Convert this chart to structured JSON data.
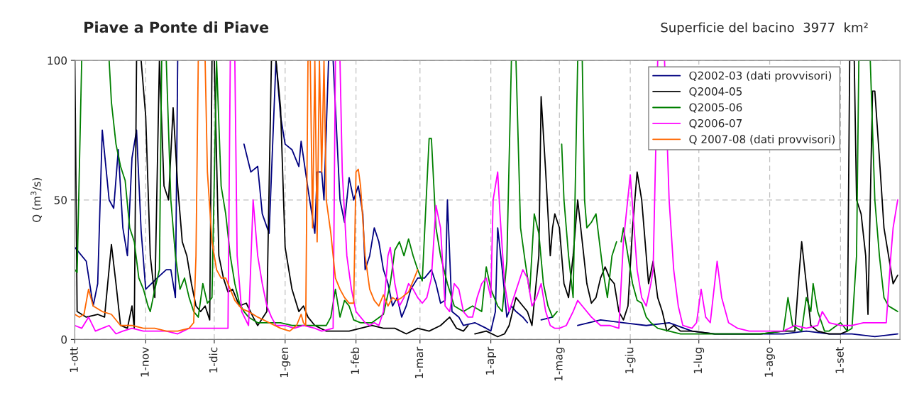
{
  "chart_data": {
    "type": "line",
    "title": "Piave a Ponte di Piave",
    "subtitle": "Superficie del bacino  3977  km²",
    "ylabel": "Q (m$^{3}$/s)",
    "xlim": [
      "2001-10-01",
      "2002-09-27"
    ],
    "xticks": [
      {
        "value": "2001-10-01",
        "label": "1-ott"
      },
      {
        "value": "2001-11-01",
        "label": "1-nov"
      },
      {
        "value": "2001-12-01",
        "label": "1-dic"
      },
      {
        "value": "2002-01-01",
        "label": "1-gen"
      },
      {
        "value": "2002-02-01",
        "label": "1-feb"
      },
      {
        "value": "2002-03-01",
        "label": "1-mar"
      },
      {
        "value": "2002-04-01",
        "label": "1-apr"
      },
      {
        "value": "2002-05-01",
        "label": "1-mag"
      },
      {
        "value": "2002-06-01",
        "label": "1-giu"
      },
      {
        "value": "2002-07-01",
        "label": "1-lug"
      },
      {
        "value": "2002-08-01",
        "label": "1-ago"
      },
      {
        "value": "2002-09-01",
        "label": "1-set"
      }
    ],
    "ylim": [
      0,
      100
    ],
    "yticks": [
      0,
      50,
      100
    ],
    "grid": true,
    "legend": "top right",
    "line_style": "solid",
    "marker": "none",
    "series": [
      {
        "name": "Q2002-03 (dati provvisori)",
        "color": "#000080",
        "x": [
          "2001-10-01",
          "2001-10-06",
          "2001-10-09",
          "2001-10-11",
          "2001-10-13",
          "2001-10-16",
          "2001-10-18",
          "2001-10-20",
          "2001-10-22",
          "2001-10-24",
          "2001-10-26",
          "2001-10-28",
          "2001-10-30",
          "2001-11-01",
          "2001-11-06",
          "2001-11-10",
          "2001-11-12",
          "2001-11-14",
          "2001-11-15",
          "2001-11-17",
          "2001-12-12",
          "2001-12-14",
          "2001-12-17",
          "2001-12-20",
          "2001-12-22",
          "2001-12-25",
          "2001-12-28",
          "2001-12-30",
          "2002-01-01",
          "2002-01-04",
          "2002-01-07",
          "2002-01-08",
          "2002-01-11",
          "2002-01-14",
          "2002-01-15",
          "2002-01-17",
          "2002-01-18",
          "2002-01-20",
          "2002-01-22",
          "2002-01-25",
          "2002-01-27",
          "2002-01-29",
          "2002-01-31",
          "2002-02-02",
          "2002-02-04",
          "2002-02-05",
          "2002-02-07",
          "2002-02-09",
          "2002-02-11",
          "2002-02-13",
          "2002-02-15",
          "2002-02-17",
          "2002-02-19",
          "2002-02-21",
          "2002-02-23",
          "2002-02-25",
          "2002-02-28",
          "2002-03-03",
          "2002-03-06",
          "2002-03-08",
          "2002-03-10",
          "2002-03-12",
          "2002-03-13",
          "2002-03-15",
          "2002-03-18",
          "2002-03-20",
          "2002-03-25",
          "2002-03-30",
          "2002-04-01",
          "2002-04-03",
          "2002-04-04",
          "2002-04-06",
          "2002-04-08",
          "2002-04-10",
          "2002-04-12",
          "2002-04-15",
          "2002-04-17",
          "2002-04-19",
          "2002-04-23",
          "2002-04-28",
          "2002-05-03",
          "2002-05-09",
          "2002-05-19",
          "2002-05-29",
          "2002-06-08",
          "2002-06-18",
          "2002-06-28",
          "2002-07-08",
          "2002-07-18",
          "2002-07-28",
          "2002-08-07",
          "2002-08-17",
          "2002-08-27",
          "2002-09-06",
          "2002-09-16",
          "2002-09-26"
        ],
        "values": [
          33,
          28,
          12,
          20,
          75,
          50,
          47,
          68,
          40,
          30,
          65,
          75,
          39,
          18,
          22,
          25,
          25,
          15,
          100,
          null,
          null,
          70,
          60,
          62,
          45,
          38,
          100,
          80,
          70,
          68,
          62,
          71,
          54,
          38,
          60,
          60,
          50,
          100,
          100,
          50,
          42,
          58,
          50,
          55,
          45,
          25,
          30,
          40,
          35,
          25,
          20,
          12,
          15,
          8,
          12,
          18,
          22,
          22,
          25,
          20,
          13,
          14,
          50,
          10,
          8,
          5,
          6,
          4,
          3,
          10,
          40,
          25,
          8,
          12,
          10,
          8,
          6,
          null,
          7,
          8,
          null,
          5,
          7,
          6,
          5,
          6,
          3,
          2,
          2,
          2,
          2,
          3,
          2,
          2,
          1,
          2
        ]
      },
      {
        "name": "Q2004-05",
        "color": "#000000",
        "x": [
          "2001-10-01",
          "2001-10-02",
          "2001-10-06",
          "2001-10-11",
          "2001-10-14",
          "2001-10-17",
          "2001-10-19",
          "2001-10-21",
          "2001-10-24",
          "2001-10-26",
          "2001-10-27",
          "2001-10-28",
          "2001-10-30",
          "2001-11-01",
          "2001-11-03",
          "2001-11-05",
          "2001-11-07",
          "2001-11-09",
          "2001-11-11",
          "2001-11-13",
          "2001-11-15",
          "2001-11-17",
          "2001-11-19",
          "2001-11-21",
          "2001-11-23",
          "2001-11-25",
          "2001-11-27",
          "2001-11-29",
          "2001-11-30",
          "2001-12-01",
          "2001-12-03",
          "2001-12-05",
          "2001-12-07",
          "2001-12-09",
          "2001-12-12",
          "2001-12-15",
          "2001-12-18",
          "2001-12-20",
          "2001-12-24",
          "2001-12-26",
          "2001-12-28",
          "2001-12-30",
          "2002-01-01",
          "2002-01-04",
          "2002-01-07",
          "2002-01-09",
          "2002-01-11",
          "2002-01-14",
          "2002-01-19",
          "2002-01-24",
          "2002-01-29",
          "2002-02-03",
          "2002-02-08",
          "2002-02-13",
          "2002-02-18",
          "2002-02-23",
          "2002-02-28",
          "2002-03-05",
          "2002-03-10",
          "2002-03-14",
          "2002-03-17",
          "2002-03-20",
          "2002-03-22",
          "2002-03-23",
          "2002-03-25",
          "2002-03-30",
          "2002-04-04",
          "2002-04-07",
          "2002-04-09",
          "2002-04-12",
          "2002-04-15",
          "2002-04-17",
          "2002-04-19",
          "2002-04-22",
          "2002-04-23",
          "2002-04-25",
          "2002-04-27",
          "2002-04-28",
          "2002-04-29",
          "2002-05-01",
          "2002-05-03",
          "2002-05-05",
          "2002-05-07",
          "2002-05-09",
          "2002-05-11",
          "2002-05-13",
          "2002-05-15",
          "2002-05-17",
          "2002-05-19",
          "2002-05-21",
          "2002-05-23",
          "2002-05-25",
          "2002-05-27",
          "2002-05-29",
          "2002-05-31",
          "2002-06-02",
          "2002-06-04",
          "2002-06-06",
          "2002-06-07",
          "2002-06-09",
          "2002-06-11",
          "2002-06-13",
          "2002-06-15",
          "2002-06-17",
          "2002-06-20",
          "2002-06-23",
          "2002-06-28",
          "2002-07-08",
          "2002-07-18",
          "2002-07-28",
          "2002-08-07",
          "2002-08-12",
          "2002-08-14",
          "2002-08-15",
          "2002-08-17",
          "2002-08-19",
          "2002-08-22",
          "2002-08-27",
          "2002-09-01",
          "2002-09-04",
          "2002-09-05",
          "2002-09-07",
          "2002-09-08",
          "2002-09-10",
          "2002-09-12",
          "2002-09-13",
          "2002-09-15",
          "2002-09-16",
          "2002-09-18",
          "2002-09-20",
          "2002-09-22",
          "2002-09-24",
          "2002-09-26"
        ],
        "values": [
          100,
          10,
          8,
          9,
          8,
          34,
          20,
          5,
          4,
          12,
          4,
          100,
          100,
          80,
          30,
          15,
          100,
          55,
          50,
          83,
          55,
          35,
          30,
          20,
          12,
          10,
          12,
          7,
          100,
          100,
          30,
          22,
          17,
          18,
          12,
          13,
          8,
          5,
          10,
          100,
          100,
          83,
          33,
          18,
          10,
          12,
          8,
          5,
          3,
          3,
          3,
          4,
          5,
          4,
          4,
          2,
          4,
          3,
          5,
          8,
          4,
          3,
          5,
          null,
          2,
          3,
          1,
          2,
          5,
          15,
          12,
          10,
          5,
          30,
          87,
          60,
          30,
          40,
          45,
          40,
          20,
          15,
          30,
          50,
          35,
          20,
          13,
          15,
          22,
          26,
          22,
          20,
          10,
          7,
          12,
          40,
          60,
          50,
          40,
          20,
          28,
          15,
          10,
          3,
          5,
          3,
          3,
          2,
          2,
          2,
          3,
          3,
          25,
          35,
          20,
          5,
          3,
          2,
          2,
          3,
          100,
          100,
          50,
          45,
          30,
          9,
          89,
          89,
          65,
          40,
          30,
          20,
          23
        ]
      },
      {
        "name": "Q2005-06",
        "color": "#008000",
        "x": [
          "2001-10-01",
          "2001-10-02",
          "2001-10-04",
          "2001-10-13",
          "2001-10-16",
          "2001-10-17",
          "2001-10-19",
          "2001-10-21",
          "2001-10-23",
          "2001-10-25",
          "2001-10-27",
          "2001-10-29",
          "2001-10-31",
          "2001-11-02",
          "2001-11-03",
          "2001-11-05",
          "2001-11-07",
          "2001-11-08",
          "2001-11-10",
          "2001-11-12",
          "2001-11-14",
          "2001-11-16",
          "2001-11-18",
          "2001-11-20",
          "2001-11-22",
          "2001-11-24",
          "2001-11-26",
          "2001-11-28",
          "2001-11-30",
          "2001-12-02",
          "2001-12-04",
          "2001-12-06",
          "2001-12-08",
          "2001-12-10",
          "2001-12-12",
          "2001-12-14",
          "2001-12-16",
          "2001-12-20",
          "2001-12-25",
          "2001-12-30",
          "2002-01-04",
          "2002-01-09",
          "2002-01-14",
          "2002-01-19",
          "2002-01-21",
          "2002-01-23",
          "2002-01-25",
          "2002-01-27",
          "2002-01-29",
          "2002-01-31",
          "2002-02-03",
          "2002-02-08",
          "2002-02-13",
          "2002-02-16",
          "2002-02-18",
          "2002-02-20",
          "2002-02-22",
          "2002-02-24",
          "2002-02-26",
          "2002-02-28",
          "2002-03-02",
          "2002-03-05",
          "2002-03-06",
          "2002-03-08",
          "2002-03-10",
          "2002-03-13",
          "2002-03-16",
          "2002-03-20",
          "2002-03-24",
          "2002-03-28",
          "2002-03-30",
          "2002-04-01",
          "2002-04-04",
          "2002-04-06",
          "2002-04-08",
          "2002-04-10",
          "2002-04-12",
          "2002-04-14",
          "2002-04-16",
          "2002-04-18",
          "2002-04-20",
          "2002-04-22",
          "2002-04-24",
          "2002-04-26",
          "2002-04-28",
          "2002-04-30",
          "2002-05-01",
          "2002-05-02",
          "2002-05-03",
          "2002-05-05",
          "2002-05-07",
          "2002-05-09",
          "2002-05-11",
          "2002-05-12",
          "2002-05-13",
          "2002-05-15",
          "2002-05-17",
          "2002-05-20",
          "2002-05-22",
          "2002-05-24",
          "2002-05-26",
          "2002-05-27",
          "2002-05-28",
          "2002-05-29",
          "2002-05-31",
          "2002-06-02",
          "2002-06-04",
          "2002-06-06",
          "2002-06-08",
          "2002-06-10",
          "2002-06-13",
          "2002-06-18",
          "2002-06-23",
          "2002-06-28",
          "2002-07-08",
          "2002-07-18",
          "2002-07-28",
          "2002-08-07",
          "2002-08-09",
          "2002-08-11",
          "2002-08-15",
          "2002-08-17",
          "2002-08-19",
          "2002-08-20",
          "2002-08-22",
          "2002-08-25",
          "2002-08-27",
          "2002-09-01",
          "2002-09-04",
          "2002-09-06",
          "2002-09-08",
          "2002-09-09",
          "2002-09-14",
          "2002-09-16",
          "2002-09-18",
          "2002-09-20",
          "2002-09-22",
          "2002-09-24",
          "2002-09-26"
        ],
        "values": [
          25,
          24,
          100,
          null,
          100,
          85,
          70,
          62,
          57,
          40,
          35,
          22,
          18,
          12,
          10,
          18,
          25,
          100,
          100,
          50,
          30,
          18,
          22,
          15,
          10,
          8,
          20,
          13,
          15,
          100,
          55,
          45,
          30,
          20,
          13,
          10,
          8,
          6,
          6,
          6,
          5,
          5,
          5,
          5,
          8,
          18,
          8,
          14,
          12,
          7,
          6,
          6,
          9,
          20,
          32,
          35,
          30,
          36,
          30,
          25,
          21,
          72,
          72,
          40,
          30,
          20,
          12,
          10,
          12,
          10,
          26,
          18,
          12,
          10,
          28,
          100,
          100,
          40,
          28,
          17,
          45,
          38,
          20,
          12,
          8,
          10,
          null,
          70,
          50,
          30,
          15,
          100,
          100,
          50,
          40,
          42,
          45,
          25,
          15,
          30,
          35,
          null,
          35,
          40,
          30,
          20,
          14,
          13,
          8,
          6,
          4,
          3,
          2,
          2,
          2,
          2,
          2,
          3,
          15,
          5,
          3,
          15,
          10,
          20,
          10,
          3,
          3,
          6,
          3,
          4,
          30,
          100,
          100,
          50,
          30,
          15,
          12,
          11,
          10
        ]
      },
      {
        "name": "Q2006-07",
        "color": "#ff00ff",
        "x": [
          "2001-10-01",
          "2001-10-04",
          "2001-10-07",
          "2001-10-10",
          "2001-10-13",
          "2001-10-16",
          "2001-10-19",
          "2001-10-22",
          "2001-10-26",
          "2001-10-31",
          "2001-11-05",
          "2001-11-10",
          "2001-11-15",
          "2001-11-20",
          "2001-11-25",
          "2001-11-30",
          "2001-12-07",
          "2001-12-08",
          "2001-12-10",
          "2001-12-11",
          "2001-12-13",
          "2001-12-16",
          "2001-12-18",
          "2001-12-20",
          "2001-12-22",
          "2001-12-24",
          "2001-12-26",
          "2001-12-28",
          "2002-01-01",
          "2002-01-05",
          "2002-01-09",
          "2002-01-14",
          "2002-01-17",
          "2002-01-22",
          "2002-01-23",
          "2002-01-25",
          "2002-01-26",
          "2002-01-28",
          "2002-01-30",
          "2002-02-01",
          "2002-02-03",
          "2002-02-05",
          "2002-02-07",
          "2002-02-09",
          "2002-02-11",
          "2002-02-13",
          "2002-02-15",
          "2002-02-16",
          "2002-02-18",
          "2002-02-20",
          "2002-02-22",
          "2002-02-24",
          "2002-02-26",
          "2002-02-28",
          "2002-03-02",
          "2002-03-04",
          "2002-03-06",
          "2002-03-08",
          "2002-03-10",
          "2002-03-12",
          "2002-03-14",
          "2002-03-16",
          "2002-03-18",
          "2002-03-20",
          "2002-03-22",
          "2002-03-24",
          "2002-03-26",
          "2002-03-28",
          "2002-03-30",
          "2002-04-01",
          "2002-04-02",
          "2002-04-04",
          "2002-04-05",
          "2002-04-07",
          "2002-04-09",
          "2002-04-11",
          "2002-04-13",
          "2002-04-15",
          "2002-04-17",
          "2002-04-19",
          "2002-04-21",
          "2002-04-23",
          "2002-04-25",
          "2002-04-27",
          "2002-04-29",
          "2002-05-01",
          "2002-05-04",
          "2002-05-07",
          "2002-05-09",
          "2002-05-11",
          "2002-05-15",
          "2002-05-19",
          "2002-05-23",
          "2002-05-27",
          "2002-05-29",
          "2002-06-01",
          "2002-06-04",
          "2002-06-06",
          "2002-06-08",
          "2002-06-10",
          "2002-06-11",
          "2002-06-13",
          "2002-06-16",
          "2002-06-18",
          "2002-06-20",
          "2002-06-22",
          "2002-06-24",
          "2002-06-28",
          "2002-06-30",
          "2002-07-02",
          "2002-07-04",
          "2002-07-06",
          "2002-07-09",
          "2002-07-11",
          "2002-07-14",
          "2002-07-18",
          "2002-07-23",
          "2002-07-28",
          "2002-08-02",
          "2002-08-07",
          "2002-08-12",
          "2002-08-17",
          "2002-08-22",
          "2002-08-24",
          "2002-08-27",
          "2002-09-01",
          "2002-09-06",
          "2002-09-11",
          "2002-09-16",
          "2002-09-21",
          "2002-09-23",
          "2002-09-24",
          "2002-09-26"
        ],
        "values": [
          5,
          4,
          8,
          3,
          4,
          5,
          2,
          3,
          4,
          3,
          3,
          3,
          2,
          4,
          4,
          4,
          4,
          100,
          100,
          30,
          10,
          5,
          50,
          30,
          20,
          12,
          8,
          5,
          5,
          4,
          5,
          4,
          3,
          4,
          100,
          100,
          60,
          30,
          18,
          10,
          8,
          6,
          5,
          6,
          5,
          10,
          30,
          33,
          20,
          12,
          15,
          20,
          18,
          15,
          13,
          15,
          22,
          48,
          40,
          12,
          10,
          20,
          18,
          10,
          8,
          8,
          15,
          20,
          22,
          15,
          50,
          60,
          45,
          20,
          10,
          15,
          20,
          25,
          22,
          12,
          15,
          20,
          10,
          5,
          4,
          4,
          5,
          10,
          14,
          12,
          8,
          5,
          5,
          4,
          35,
          59,
          25,
          15,
          12,
          20,
          25,
          100,
          100,
          50,
          25,
          12,
          5,
          4,
          6,
          18,
          8,
          6,
          28,
          15,
          6,
          4,
          3,
          3,
          3,
          3,
          5,
          4,
          5,
          10,
          6,
          5,
          5,
          6,
          6,
          6,
          30,
          40,
          50
        ]
      },
      {
        "name": "Q 2007-08 (dati provvisori)",
        "color": "#ff6600",
        "x": [
          "2001-10-01",
          "2001-10-03",
          "2001-10-05",
          "2001-10-07",
          "2001-10-09",
          "2001-10-13",
          "2001-10-17",
          "2001-10-21",
          "2001-10-26",
          "2001-10-31",
          "2001-11-05",
          "2001-11-10",
          "2001-11-15",
          "2001-11-20",
          "2001-11-22",
          "2001-11-23",
          "2001-11-24",
          "2001-11-27",
          "2001-11-28",
          "2001-11-30",
          "2001-12-02",
          "2001-12-04",
          "2001-12-06",
          "2001-12-08",
          "2001-12-10",
          "2001-12-13",
          "2001-12-16",
          "2001-12-20",
          "2001-12-25",
          "2001-12-30",
          "2002-01-03",
          "2002-01-06",
          "2002-01-08",
          "2002-01-09",
          "2002-01-10",
          "2002-01-11",
          "2002-01-12",
          "2002-01-13",
          "2002-01-14",
          "2002-01-15",
          "2002-01-16",
          "2002-01-17",
          "2002-01-18",
          "2002-01-19",
          "2002-01-21",
          "2002-01-23",
          "2002-01-25",
          "2002-01-27",
          "2002-01-29",
          "2002-01-31",
          "2002-02-01",
          "2002-02-02",
          "2002-02-03",
          "2002-02-05",
          "2002-02-07",
          "2002-02-09",
          "2002-02-11",
          "2002-02-13",
          "2002-02-15",
          "2002-02-17",
          "2002-02-19",
          "2002-02-21",
          "2002-02-24",
          "2002-02-28"
        ],
        "values": [
          9,
          8,
          9,
          18,
          12,
          10,
          9,
          5,
          5,
          4,
          4,
          3,
          3,
          4,
          6,
          30,
          100,
          100,
          60,
          35,
          25,
          22,
          22,
          18,
          14,
          11,
          10,
          8,
          6,
          4,
          3,
          5,
          9,
          6,
          5,
          100,
          100,
          40,
          100,
          35,
          100,
          60,
          100,
          50,
          38,
          22,
          18,
          15,
          13,
          13,
          60,
          61,
          55,
          30,
          18,
          14,
          12,
          16,
          12,
          15,
          14,
          15,
          17,
          25
        ]
      }
    ]
  }
}
